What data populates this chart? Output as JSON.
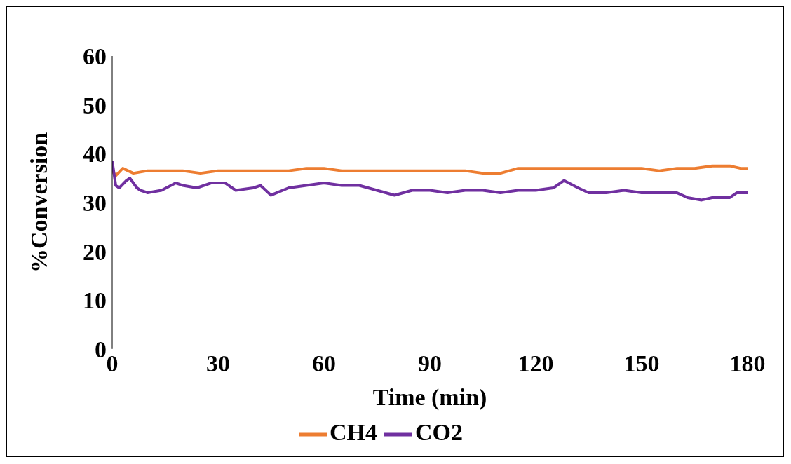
{
  "chart_data": {
    "type": "line",
    "xlabel": "Time (min)",
    "ylabel": "%Conversion",
    "xlim": [
      0,
      180
    ],
    "xticks": [
      0,
      30,
      60,
      90,
      120,
      150,
      180
    ],
    "ylim": [
      0,
      60
    ],
    "yticks": [
      0,
      10,
      20,
      30,
      40,
      50,
      60
    ],
    "grid": false,
    "legend": "bottom",
    "marker": "none",
    "line_style": "solid",
    "series": [
      {
        "name": "CH4",
        "color": "#ed7d31",
        "x": [
          0,
          1,
          3,
          6,
          10,
          15,
          20,
          25,
          30,
          35,
          40,
          45,
          50,
          55,
          60,
          65,
          70,
          75,
          80,
          85,
          90,
          95,
          100,
          105,
          110,
          115,
          120,
          125,
          130,
          135,
          140,
          145,
          150,
          155,
          160,
          165,
          170,
          175,
          178,
          180
        ],
        "values": [
          36.5,
          35.5,
          37,
          36,
          36.5,
          36.5,
          36.5,
          36,
          36.5,
          36.5,
          36.5,
          36.5,
          36.5,
          37,
          37,
          36.5,
          36.5,
          36.5,
          36.5,
          36.5,
          36.5,
          36.5,
          36.5,
          36,
          36,
          37,
          37,
          37,
          37,
          37,
          37,
          37,
          37,
          36.5,
          37,
          37,
          37.5,
          37.5,
          37,
          37
        ]
      },
      {
        "name": "CO2",
        "color": "#7030a0",
        "x": [
          0,
          1,
          2,
          4,
          5,
          7,
          8,
          10,
          14,
          18,
          20,
          24,
          28,
          32,
          35,
          40,
          42,
          45,
          50,
          55,
          60,
          65,
          70,
          75,
          80,
          85,
          90,
          95,
          100,
          105,
          110,
          115,
          120,
          125,
          128,
          132,
          135,
          140,
          145,
          150,
          155,
          160,
          163,
          167,
          170,
          175,
          177,
          180
        ],
        "values": [
          38.5,
          33.5,
          33,
          34.5,
          35,
          33,
          32.5,
          32,
          32.5,
          34,
          33.5,
          33,
          34,
          34,
          32.5,
          33,
          33.5,
          31.5,
          33,
          33.5,
          34,
          33.5,
          33.5,
          32.5,
          31.5,
          32.5,
          32.5,
          32,
          32.5,
          32.5,
          32,
          32.5,
          32.5,
          33,
          34.5,
          33,
          32,
          32,
          32.5,
          32,
          32,
          32,
          31,
          30.5,
          31,
          31,
          32,
          32
        ]
      }
    ]
  }
}
